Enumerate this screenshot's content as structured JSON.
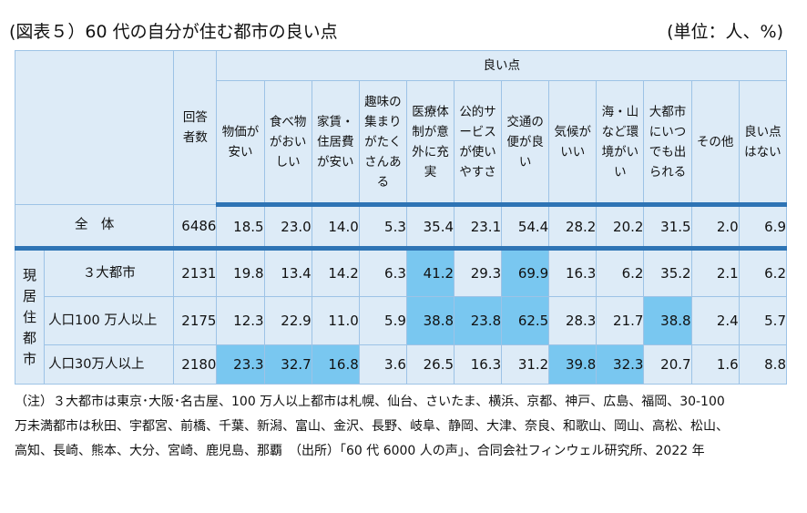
{
  "title": "(図表５）60 代の自分が住む都市の良い点",
  "unit": "(単位：人、%)",
  "table": {
    "group_header": "良い点",
    "respondents_header": "回答者数",
    "columns": [
      "物価が安い",
      "食べ物がおいしい",
      "家賃・住居費が安い",
      "趣味の集まりがたくさんある",
      "医療体制が意外に充実",
      "公的サービスが使いやすさ",
      "交通の便が良い",
      "気候がいい",
      "海・山など環境がいい",
      "大都市にいつでも出られる",
      "その他",
      "良い点はない"
    ],
    "residence_label": "現居住都市",
    "rows": [
      {
        "label": "全　体",
        "n": "6486",
        "values": [
          "18.5",
          "23.0",
          "14.0",
          "5.3",
          "35.4",
          "23.1",
          "54.4",
          "28.2",
          "20.2",
          "31.5",
          "2.0",
          "6.9"
        ]
      },
      {
        "label": "３大都市",
        "n": "2131",
        "values": [
          "19.8",
          "13.4",
          "14.2",
          "6.3",
          "41.2",
          "29.3",
          "69.9",
          "16.3",
          "6.2",
          "35.2",
          "2.1",
          "6.2"
        ]
      },
      {
        "label": "人口100 万人以上",
        "n": "2175",
        "values": [
          "12.3",
          "22.9",
          "11.0",
          "5.9",
          "38.8",
          "23.8",
          "62.5",
          "28.3",
          "21.7",
          "38.8",
          "2.4",
          "5.7"
        ]
      },
      {
        "label": "人口30万人以上",
        "n": "2180",
        "values": [
          "23.3",
          "32.7",
          "16.8",
          "3.6",
          "26.5",
          "16.3",
          "31.2",
          "39.8",
          "32.3",
          "20.7",
          "1.6",
          "8.8"
        ]
      }
    ],
    "highlight_color": "#79c7f0"
  },
  "note": {
    "line1": "（注）３大都市は東京･大阪･名古屋、100 万人以上都市は札幌、仙台、さいたま、横浜、京都、神戸、広島、福岡、30-100",
    "line2": "万未満都市は秋田、宇都宮、前橋、千葉、新潟、富山、金沢、長野、岐阜、静岡、大津、奈良、和歌山、岡山、高松、松山、",
    "line3": "高知、長崎、熊本、大分、宮崎、鹿児島、那覇　（出所）「60 代 6000 人の声」、合同会社フィンウェル研究所、2022 年"
  }
}
